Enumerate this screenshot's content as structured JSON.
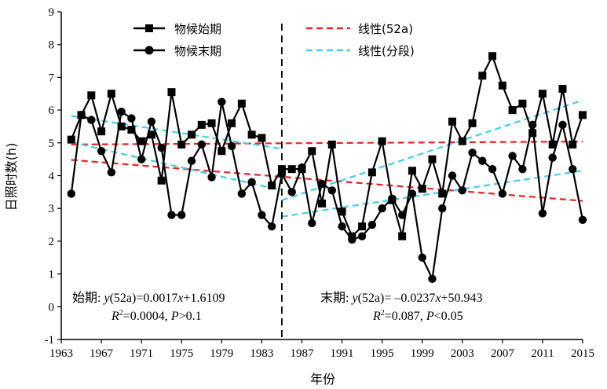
{
  "chart_data": {
    "type": "line",
    "xlabel": "年份",
    "ylabel": "日照时数(h)",
    "xlim": [
      1963,
      2015
    ],
    "ylim": [
      -1,
      9
    ],
    "xticks": [
      "1963",
      "1967",
      "1971",
      "1975",
      "1979",
      "1983",
      "1987",
      "1991",
      "1995",
      "1999",
      "2003",
      "2007",
      "2011",
      "2015"
    ],
    "yticks": [
      "-1",
      "0",
      "1",
      "2",
      "3",
      "4",
      "5",
      "6",
      "7",
      "8",
      "9"
    ],
    "split_year": 1985,
    "legend": {
      "start": "物候始期",
      "end": "物候末期",
      "linear52": "线性(52a)",
      "linearSeg": "线性(分段)"
    },
    "colors": {
      "linear52": "#ee2222",
      "linearSeg": "#44ccee",
      "series": "#000000"
    },
    "series": [
      {
        "name": "物候始期",
        "marker": "square",
        "x": [
          1964,
          1965,
          1966,
          1967,
          1968,
          1969,
          1970,
          1971,
          1972,
          1973,
          1974,
          1975,
          1976,
          1977,
          1978,
          1979,
          1980,
          1981,
          1982,
          1983,
          1984,
          1985,
          1986,
          1987,
          1988,
          1989,
          1990,
          1991,
          1992,
          1993,
          1994,
          1995,
          1996,
          1997,
          1998,
          1999,
          2000,
          2001,
          2002,
          2003,
          2004,
          2005,
          2006,
          2007,
          2008,
          2009,
          2010,
          2011,
          2012,
          2013,
          2014,
          2015
        ],
        "values": [
          5.1,
          5.85,
          6.45,
          5.35,
          6.5,
          5.5,
          5.4,
          5.05,
          5.25,
          3.85,
          6.55,
          4.95,
          5.25,
          5.55,
          5.6,
          4.75,
          5.6,
          6.2,
          5.25,
          5.15,
          3.7,
          4.2,
          4.2,
          4.2,
          4.75,
          3.15,
          4.95,
          2.9,
          2.15,
          2.45,
          4.1,
          5.05,
          3.25,
          2.15,
          4.15,
          3.6,
          4.5,
          3.45,
          5.65,
          5.05,
          5.6,
          7.05,
          7.65,
          6.75,
          6.0,
          6.2,
          5.3,
          6.5,
          4.95,
          6.65,
          4.95,
          5.85
        ]
      },
      {
        "name": "物候末期",
        "marker": "circle",
        "x": [
          1964,
          1965,
          1966,
          1967,
          1968,
          1969,
          1970,
          1971,
          1972,
          1973,
          1974,
          1975,
          1976,
          1977,
          1978,
          1979,
          1980,
          1981,
          1982,
          1983,
          1984,
          1985,
          1986,
          1987,
          1988,
          1989,
          1990,
          1991,
          1992,
          1993,
          1994,
          1995,
          1996,
          1997,
          1998,
          1999,
          2000,
          2001,
          2002,
          2003,
          2004,
          2005,
          2006,
          2007,
          2008,
          2009,
          2010,
          2011,
          2012,
          2013,
          2014,
          2015
        ],
        "values": [
          3.45,
          5.85,
          5.7,
          4.75,
          4.1,
          5.95,
          5.75,
          4.5,
          5.65,
          4.85,
          2.8,
          2.8,
          4.45,
          4.95,
          3.95,
          6.25,
          4.9,
          3.45,
          3.8,
          2.8,
          2.45,
          4.05,
          3.5,
          4.25,
          2.55,
          3.75,
          3.55,
          2.45,
          2.05,
          2.15,
          2.5,
          3.0,
          3.3,
          2.8,
          3.45,
          1.5,
          0.85,
          3.0,
          4.0,
          3.55,
          4.7,
          4.45,
          4.2,
          3.45,
          4.6,
          4.2,
          5.55,
          2.85,
          4.55,
          5.55,
          4.2,
          2.65
        ]
      }
    ],
    "trend_lines": [
      {
        "name": "线性(52a)",
        "for": "物候始期",
        "x": [
          1964,
          2015
        ],
        "y": [
          4.95,
          5.04
        ]
      },
      {
        "name": "线性(52a)",
        "for": "物候末期",
        "x": [
          1964,
          2015
        ],
        "y": [
          4.48,
          3.23
        ]
      },
      {
        "name": "线性(分段)",
        "for": "物候始期",
        "x": [
          1964,
          1985
        ],
        "y": [
          5.82,
          4.82
        ]
      },
      {
        "name": "线性(分段)",
        "for": "物候始期",
        "x": [
          1985,
          2015
        ],
        "y": [
          3.25,
          6.3
        ]
      },
      {
        "name": "线性(分段)",
        "for": "物候末期",
        "x": [
          1964,
          1985
        ],
        "y": [
          5.02,
          3.55
        ]
      },
      {
        "name": "线性(分段)",
        "for": "物候末期",
        "x": [
          1985,
          2015
        ],
        "y": [
          2.75,
          4.15
        ]
      }
    ],
    "annotations": {
      "left_line1_prefix": "始期: ",
      "left_line1_formula": "y",
      "left_line1_rest": "(52a)=0.0017",
      "left_line1_x": "x",
      "left_line1_tail": "+1.6109",
      "left_line2_R": "R",
      "left_line2_sup": "2",
      "left_line2_val": "=0.0004, ",
      "left_line2_P": "P",
      "left_line2_tail": ">0.1",
      "right_line1_prefix": "末期: ",
      "right_line1_formula": "y",
      "right_line1_rest": "(52a)= –0.0237",
      "right_line1_x": "x",
      "right_line1_tail": "+50.943",
      "right_line2_R": "R",
      "right_line2_sup": "2",
      "right_line2_val": "=0.087, ",
      "right_line2_P": "P",
      "right_line2_tail": "<0.05"
    }
  }
}
